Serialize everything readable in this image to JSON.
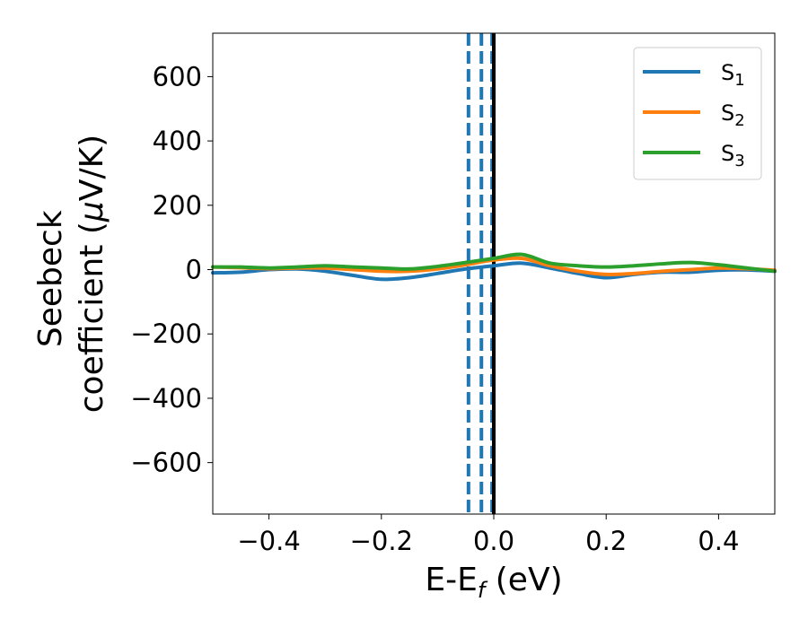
{
  "chart_data": {
    "type": "line",
    "title": "",
    "xlabel": {
      "main": "E-E",
      "sub": "f",
      "tail": " (eV)"
    },
    "ylabel": {
      "line1": "Seebeck",
      "line2_prefix": "coefficient  (",
      "line2_mu": "μ",
      "line2_suffix": "V/K)"
    },
    "xlim": [
      -0.5,
      0.5
    ],
    "ylim": [
      -760,
      735
    ],
    "xticks": [
      -0.4,
      -0.2,
      0.0,
      0.2,
      0.4
    ],
    "xtick_labels": [
      "−0.4",
      "−0.2",
      "0.0",
      "0.2",
      "0.4"
    ],
    "yticks": [
      -600,
      -400,
      -200,
      0,
      200,
      400,
      600
    ],
    "ytick_labels": [
      "−600",
      "−400",
      "−200",
      "0",
      "200",
      "400",
      "600"
    ],
    "legend_position": "upper right",
    "vertical_lines": [
      {
        "x": -0.045,
        "style": "dashed",
        "color": "#1f77b4"
      },
      {
        "x": -0.022,
        "style": "dashed",
        "color": "#1f77b4"
      },
      {
        "x": -0.003,
        "style": "dashed",
        "color": "#1f77b4"
      },
      {
        "x": 0.0,
        "style": "solid",
        "color": "#000000"
      }
    ],
    "x": [
      -0.5,
      -0.45,
      -0.4,
      -0.35,
      -0.3,
      -0.25,
      -0.2,
      -0.15,
      -0.1,
      -0.05,
      0.0,
      0.05,
      0.1,
      0.15,
      0.2,
      0.25,
      0.3,
      0.35,
      0.4,
      0.45,
      0.5
    ],
    "series": [
      {
        "name": "S",
        "sub": "1",
        "color": "#1f77b4",
        "values": [
          -10,
          -8,
          0,
          2,
          -5,
          -18,
          -30,
          -25,
          -12,
          2,
          12,
          20,
          5,
          -12,
          -25,
          -15,
          -8,
          -8,
          -2,
          -1,
          -5
        ]
      },
      {
        "name": "S",
        "sub": "2",
        "color": "#ff7f0e",
        "values": [
          8,
          6,
          3,
          5,
          5,
          0,
          -5,
          -5,
          2,
          15,
          30,
          35,
          12,
          -5,
          -15,
          -12,
          -5,
          0,
          5,
          3,
          -2
        ]
      },
      {
        "name": "S",
        "sub": "3",
        "color": "#2ca02c",
        "values": [
          8,
          8,
          5,
          8,
          12,
          8,
          5,
          2,
          10,
          22,
          35,
          47,
          20,
          12,
          8,
          12,
          18,
          22,
          15,
          5,
          -5
        ]
      }
    ]
  }
}
